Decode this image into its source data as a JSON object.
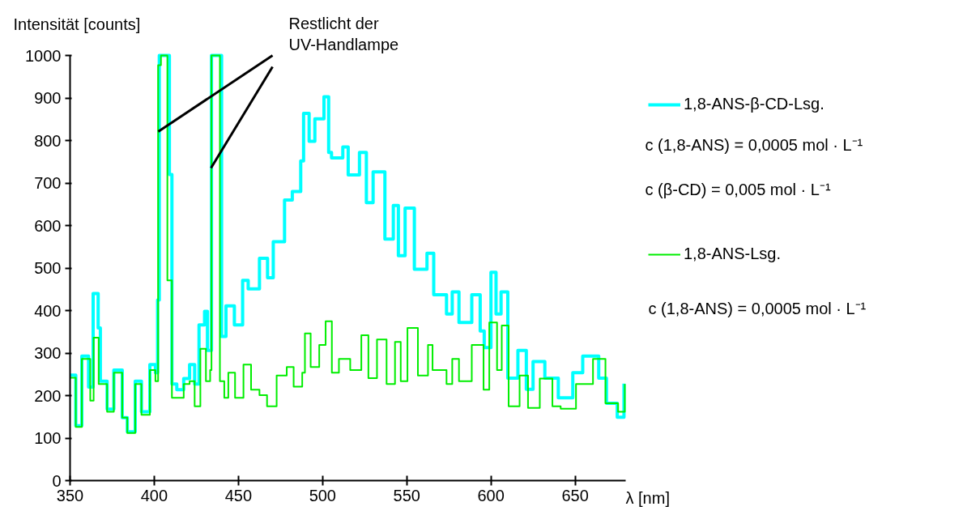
{
  "chart_data": {
    "type": "step",
    "ylabel": "Intensität [counts]",
    "xlabel": "λ [nm]",
    "xlim": [
      350,
      680
    ],
    "ylim": [
      0,
      1000
    ],
    "xticks": [
      350,
      400,
      450,
      500,
      550,
      600,
      650
    ],
    "yticks": [
      0,
      100,
      200,
      300,
      400,
      500,
      600,
      700,
      800,
      900,
      1000
    ],
    "grid": false,
    "legend": "right",
    "line_style": "solid",
    "marker": "none",
    "annotations": [
      {
        "text": "Restlicht der\nUV-Handlampe",
        "x": 402.4,
        "y": 821
      },
      "c (1,8-ANS) = 0,0005 mol · L⁻¹",
      "c (β-CD) = 0,005 mol · L⁻¹",
      "c (1,8-ANS) = 0,0005 mol · L⁻¹"
    ],
    "series": [
      {
        "name": "1,8-ANS-β-CD-Lsg.",
        "color": "#00ffff",
        "x": [
          350,
          353.4,
          357,
          361,
          363.7,
          366.7,
          368,
          372,
          376,
          381,
          384,
          388.7,
          392.4,
          397.4,
          400.7,
          402,
          403,
          407.5,
          409,
          410.5,
          413.4,
          417.5,
          421,
          424,
          426.6,
          429.9,
          431.6,
          434,
          438,
          440,
          442.6,
          447.6,
          452.5,
          455.8,
          462.5,
          467.3,
          470.7,
          477.4,
          482,
          487,
          488.7,
          492,
          495.4,
          500.8,
          503.6,
          505.3,
          512,
          515.2,
          521.9,
          526,
          530,
          537,
          542,
          545,
          549,
          554.5,
          562,
          566,
          573.6,
          577,
          581,
          588.6,
          593.6,
          596,
          600,
          603,
          606,
          610,
          616,
          621,
          625,
          632,
          640,
          648.6,
          654.5,
          660,
          664,
          668.6,
          675,
          679
        ],
        "values": [
          248,
          129,
          293,
          220,
          440,
          359,
          234,
          168,
          260,
          148,
          115,
          234,
          162,
          273,
          254,
          425,
          1000,
          1000,
          720,
          227,
          214,
          240,
          273,
          227,
          366,
          398,
          306,
          1000,
          1000,
          339,
          411,
          366,
          471,
          451,
          523,
          477,
          562,
          660,
          680,
          752,
          864,
          798,
          851,
          903,
          772,
          759,
          785,
          719,
          772,
          654,
          726,
          568,
          647,
          529,
          641,
          497,
          535,
          437,
          392,
          444,
          372,
          437,
          352,
          313,
          490,
          392,
          444,
          241,
          306,
          215,
          280,
          241,
          195,
          254,
          293,
          293,
          241,
          182,
          149,
          228
        ]
      },
      {
        "name": "1,8-ANS-Lsg.",
        "color": "#00ee00",
        "x": [
          350,
          353.4,
          357,
          362,
          364,
          367,
          372,
          376,
          381,
          384,
          388.7,
          392.4,
          397.4,
          400.7,
          402.3,
          404,
          406.7,
          407.8,
          410.5,
          413.8,
          417.5,
          421,
          424,
          427.4,
          430.7,
          433.2,
          434,
          437.7,
          439,
          441.6,
          444,
          448,
          453,
          457.5,
          462.5,
          467,
          472.7,
          478.7,
          482.8,
          487.9,
          489.5,
          492.9,
          498,
          501.8,
          505.5,
          509.7,
          516.4,
          523,
          527.2,
          532.3,
          538,
          543,
          546.4,
          550.4,
          556.6,
          562.6,
          565.3,
          573.6,
          577,
          581,
          588.6,
          595.6,
          599,
          603.6,
          606.4,
          610.5,
          617,
          622,
          629,
          636.5,
          641.4,
          650.5,
          660.6,
          668,
          675.5,
          679.5
        ],
        "values": [
          242,
          126,
          286,
          188,
          336,
          227,
          162,
          254,
          148,
          112,
          227,
          155,
          260,
          234,
          977,
          1000,
          1000,
          471,
          195,
          195,
          227,
          234,
          175,
          310,
          234,
          260,
          1000,
          1000,
          234,
          195,
          254,
          195,
          273,
          214,
          201,
          175,
          247,
          267,
          221,
          254,
          346,
          267,
          319,
          375,
          254,
          286,
          260,
          342,
          241,
          332,
          227,
          326,
          234,
          359,
          247,
          319,
          260,
          227,
          286,
          234,
          319,
          214,
          372,
          260,
          365,
          175,
          247,
          171,
          240,
          175,
          169,
          227,
          286,
          182,
          162,
          227
        ]
      }
    ]
  }
}
